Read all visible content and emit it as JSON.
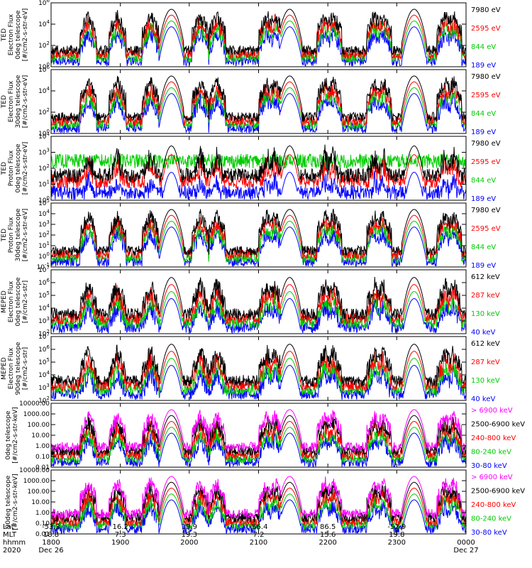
{
  "chart_data": {
    "type": "line",
    "colors": {
      "black": "#000000",
      "red": "#ff0000",
      "green": "#00cc00",
      "blue": "#0000ff",
      "magenta": "#ff00ff"
    },
    "x_start": "1800",
    "x_end": "0000",
    "panels": [
      {
        "ylabel": [
          "TED",
          "Electron Flux",
          "0deg telescope",
          "[#/cm2-s-str-eV]"
        ],
        "scale": "log",
        "ylim_exp": [
          0,
          6
        ],
        "yticks": [
          "10^0",
          "10^2",
          "10^4",
          "10^6"
        ],
        "legend": [
          {
            "label": "7980 eV",
            "color": "#000000"
          },
          {
            "label": "2595 eV",
            "color": "#ff0000"
          },
          {
            "label": "844 eV",
            "color": "#00cc00"
          },
          {
            "label": "189 eV",
            "color": "#0000ff"
          }
        ]
      },
      {
        "ylabel": [
          "TED",
          "Electron Flux",
          "30deg telescope",
          "[#/cm2-s-str-eV]"
        ],
        "scale": "log",
        "ylim_exp": [
          0,
          6
        ],
        "yticks": [
          "10^0",
          "10^2",
          "10^4",
          "10^6"
        ],
        "legend": [
          {
            "label": "7980 eV",
            "color": "#000000"
          },
          {
            "label": "2595 eV",
            "color": "#ff0000"
          },
          {
            "label": "844 eV",
            "color": "#00cc00"
          },
          {
            "label": "189 eV",
            "color": "#0000ff"
          }
        ]
      },
      {
        "ylabel": [
          "TED",
          "Proton Flux",
          "0deg telescope",
          "[#/cm2-s-str-eV]"
        ],
        "scale": "log",
        "ylim_exp": [
          0,
          4
        ],
        "yticks": [
          "10^0",
          "10^1",
          "10^2",
          "10^3",
          "10^4"
        ],
        "legend": [
          {
            "label": "7980 eV",
            "color": "#000000"
          },
          {
            "label": "2595 eV",
            "color": "#ff0000"
          },
          {
            "label": "844 eV",
            "color": "#00cc00"
          },
          {
            "label": "189 eV",
            "color": "#0000ff"
          }
        ]
      },
      {
        "ylabel": [
          "TED",
          "Proton Flux",
          "30deg telescope",
          "[#/cm2-s-str-eV]"
        ],
        "scale": "log",
        "ylim_exp": [
          -1,
          5
        ],
        "yticks": [
          "10^-1",
          "10^0",
          "10^1",
          "10^2",
          "10^3",
          "10^4",
          "10^5"
        ],
        "legend": [
          {
            "label": "7980 eV",
            "color": "#000000"
          },
          {
            "label": "2595 eV",
            "color": "#ff0000"
          },
          {
            "label": "844 eV",
            "color": "#00cc00"
          },
          {
            "label": "189 eV",
            "color": "#0000ff"
          }
        ]
      },
      {
        "ylabel": [
          "MEPED",
          "Electron Flux",
          "0deg telescope",
          "[#/cm2-s-str]"
        ],
        "scale": "log",
        "ylim_exp": [
          2,
          7
        ],
        "yticks": [
          "10^2",
          "10^3",
          "10^4",
          "10^5",
          "10^6",
          "10^7"
        ],
        "legend": [
          {
            "label": "612 keV",
            "color": "#000000"
          },
          {
            "label": "287 keV",
            "color": "#ff0000"
          },
          {
            "label": "130 keV",
            "color": "#00cc00"
          },
          {
            "label": "40 keV",
            "color": "#0000ff"
          }
        ]
      },
      {
        "ylabel": [
          "MEPED",
          "Electron Flux",
          "90deg telescope",
          "[#/cm2-s-str]"
        ],
        "scale": "log",
        "ylim_exp": [
          2,
          7
        ],
        "yticks": [
          "10^2",
          "10^3",
          "10^4",
          "10^5",
          "10^6",
          "10^7"
        ],
        "legend": [
          {
            "label": "612 keV",
            "color": "#000000"
          },
          {
            "label": "287 keV",
            "color": "#ff0000"
          },
          {
            "label": "130 keV",
            "color": "#00cc00"
          },
          {
            "label": "40 keV",
            "color": "#0000ff"
          }
        ]
      },
      {
        "ylabel": [
          "0deg telescope",
          "[#/cm2-s-str-keV]"
        ],
        "scale": "log",
        "ylim_exp": [
          -2,
          4
        ],
        "yticks": [
          "0.01",
          "0.10",
          "1.00",
          "10.00",
          "100.00",
          "1000.00",
          "10000.00"
        ],
        "legend": [
          {
            "label": "> 6900 keV",
            "color": "#ff00ff"
          },
          {
            "label": "2500-6900 keV",
            "color": "#000000"
          },
          {
            "label": "240-800 keV",
            "color": "#ff0000"
          },
          {
            "label": "80-240 keV",
            "color": "#00cc00"
          },
          {
            "label": "30-80 keV",
            "color": "#0000ff"
          }
        ]
      },
      {
        "ylabel": [
          "90deg telescope",
          "[#/cm2-s-str-keV]"
        ],
        "scale": "log",
        "ylim_exp": [
          -2,
          4
        ],
        "yticks": [
          "0.01",
          "0.10",
          "1.00",
          "10.00",
          "100.00",
          "1000.00",
          "10000.00"
        ],
        "legend": [
          {
            "label": "> 6900 keV",
            "color": "#ff00ff"
          },
          {
            "label": "2500-6900 keV",
            "color": "#000000"
          },
          {
            "label": "240-800 keV",
            "color": "#ff0000"
          },
          {
            "label": "80-240 keV",
            "color": "#00cc00"
          },
          {
            "label": "30-80 keV",
            "color": "#0000ff"
          }
        ]
      }
    ],
    "x_axis": {
      "row_labels": [
        "Lat",
        "MLT",
        "hhmm",
        "2020"
      ],
      "ticks": [
        {
          "t": 0.0,
          "lat": "-53.3",
          "mlt": "18.8",
          "hhmm": "1800",
          "date": "Dec 26"
        },
        {
          "t": 0.167,
          "lat": "16.2",
          "mlt": "7.3",
          "hhmm": "1900",
          "date": ""
        },
        {
          "t": 0.333,
          "lat": "19.9",
          "mlt": "19.3",
          "hhmm": "2000",
          "date": ""
        },
        {
          "t": 0.5,
          "lat": "-56.4",
          "mlt": "7.2",
          "hhmm": "2100",
          "date": ""
        },
        {
          "t": 0.667,
          "lat": "86.5",
          "mlt": "15.6",
          "hhmm": "2200",
          "date": ""
        },
        {
          "t": 0.833,
          "lat": "-52.9",
          "mlt": "19.8",
          "hhmm": "2300",
          "date": ""
        },
        {
          "t": 1.0,
          "lat": "",
          "mlt": "",
          "hhmm": "0000",
          "date": "Dec 27"
        }
      ]
    }
  }
}
